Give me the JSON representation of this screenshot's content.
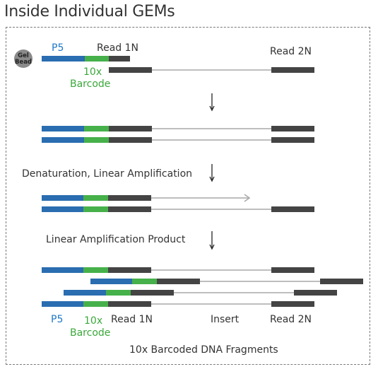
{
  "title": "Inside Individual GEMs",
  "colors": {
    "p5": "#2a6db0",
    "barcode": "#46b14a",
    "read1": "#444444",
    "read2": "#444444",
    "insert_line": "#a8a8a8",
    "bead": "#8a8a8a",
    "label_blue": "#1f77c8",
    "label_green": "#3aa83a"
  },
  "gel_bead": {
    "line1": "Gel",
    "line2": "Bead"
  },
  "step1_labels": {
    "p5": "P5",
    "read1": "Read 1N",
    "read2": "Read 2N",
    "barcode_line1": "10x",
    "barcode_line2": "Barcode"
  },
  "steps": {
    "denaturation": "Denaturation, Linear Amplification",
    "linear_product": "Linear Amplification Product"
  },
  "final_labels": {
    "p5": "P5",
    "barcode_line1": "10x",
    "barcode_line2": "Barcode",
    "read1": "Read 1N",
    "insert": "Insert",
    "read2": "Read 2N"
  },
  "caption": "10x Barcoded DNA Fragments",
  "arrow_icon": "down-arrow-icon"
}
